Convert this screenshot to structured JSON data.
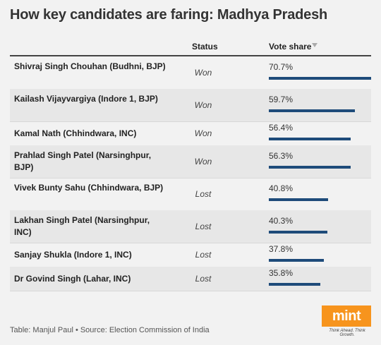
{
  "title": "How key candidates are faring: Madhya Pradesh",
  "columns": {
    "status": "Status",
    "vote_share": "Vote share"
  },
  "footer": "Table: Manjul Paul • Source: Election Commission of India",
  "logo": {
    "text": "mint",
    "tagline": "Think Ahead. Think Growth."
  },
  "colors": {
    "bar": "#1e4b7a",
    "alt_row": "#e7e7e7",
    "logo": "#f7941d"
  },
  "chart_data": {
    "type": "table",
    "title": "How key candidates are faring: Madhya Pradesh",
    "columns": [
      "",
      "Status",
      "Vote share"
    ],
    "xlim": [
      0,
      100
    ],
    "sorted_by": "Vote share",
    "rows": [
      {
        "candidate": "Shivraj Singh Chouhan (Budhni, BJP)",
        "status": "Won",
        "value": 70.7,
        "label": "70.7%"
      },
      {
        "candidate": "Kailash Vijayvargiya (Indore 1, BJP)",
        "status": "Won",
        "value": 59.7,
        "label": "59.7%"
      },
      {
        "candidate": "Kamal Nath (Chhindwara, INC)",
        "status": "Won",
        "value": 56.4,
        "label": "56.4%"
      },
      {
        "candidate": "Prahlad Singh Patel (Narsinghpur, BJP)",
        "status": "Won",
        "value": 56.3,
        "label": "56.3%"
      },
      {
        "candidate": "Vivek Bunty Sahu (Chhindwara, BJP)",
        "status": "Lost",
        "value": 40.8,
        "label": "40.8%"
      },
      {
        "candidate": "Lakhan Singh Patel (Narsinghpur, INC)",
        "status": "Lost",
        "value": 40.3,
        "label": "40.3%"
      },
      {
        "candidate": "Sanjay Shukla (Indore 1, INC)",
        "status": "Lost",
        "value": 37.8,
        "label": "37.8%"
      },
      {
        "candidate": "Dr Govind Singh (Lahar, INC)",
        "status": "Lost",
        "value": 35.8,
        "label": "35.8%"
      }
    ]
  }
}
